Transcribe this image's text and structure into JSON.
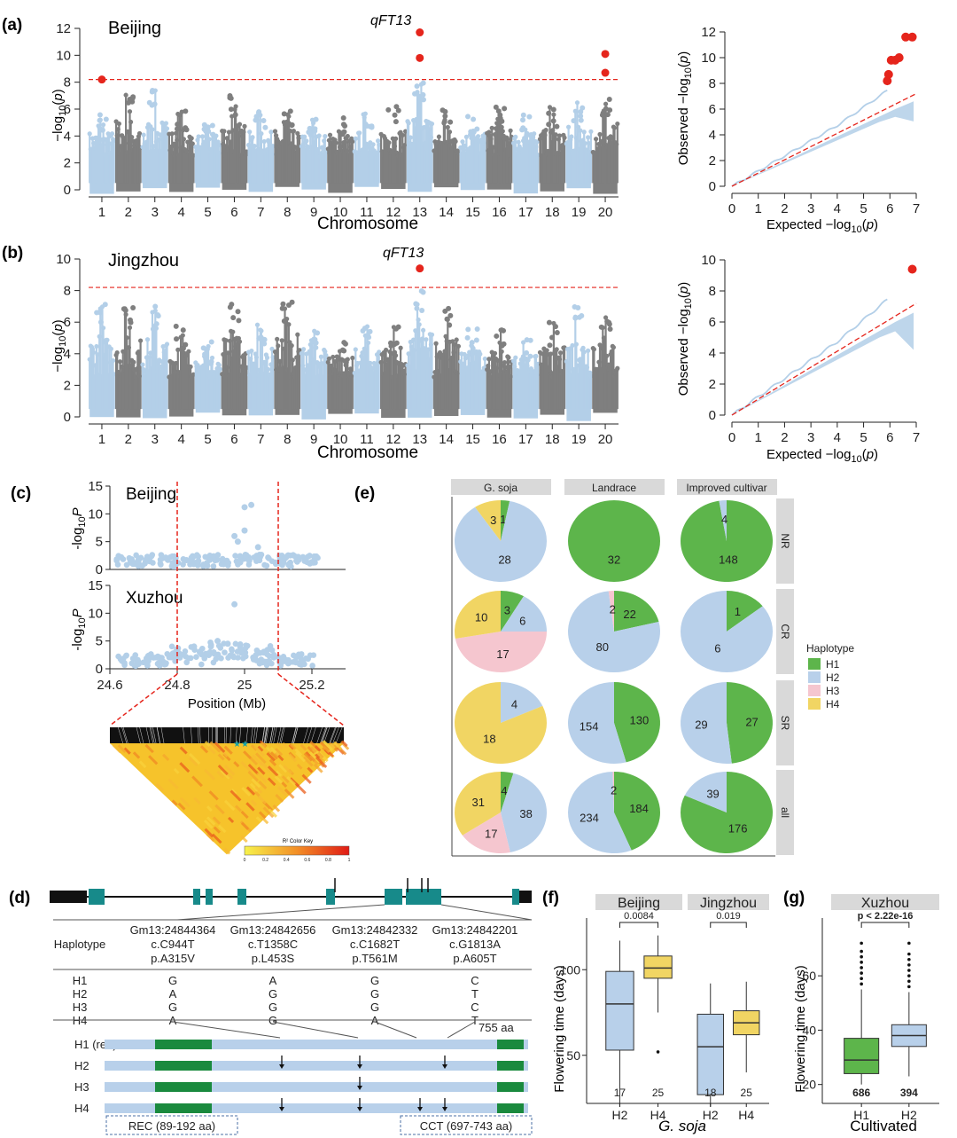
{
  "panel_letters": [
    "(a)",
    "(b)",
    "(c)",
    "(d)",
    "(e)",
    "(f)",
    "(g)"
  ],
  "colors": {
    "light": "#b3cfe8",
    "dark": "#7f7f7f",
    "sig": "#e5251c",
    "threshold": "#e5251c",
    "h1": "#5db54b",
    "h2": "#b8d0ea",
    "h3": "#f5c6cf",
    "h4": "#f1d563",
    "gene": "#178a8a",
    "domain": "#1a8a3e"
  },
  "chart_data": [
    {
      "id": "a_manhattan",
      "type": "scatter",
      "title": "Beijing",
      "annotation": "qFT13",
      "xlabel": "Chromosome",
      "ylabel": "-log10(p)",
      "ylim": [
        0,
        12
      ],
      "yticks": [
        "0",
        "2",
        "4",
        "6",
        "8",
        "10",
        "12"
      ],
      "categories": [
        "1",
        "2",
        "3",
        "4",
        "5",
        "6",
        "7",
        "8",
        "9",
        "10",
        "11",
        "12",
        "13",
        "14",
        "15",
        "16",
        "17",
        "18",
        "19",
        "20"
      ],
      "threshold": 8.2,
      "peak_heights": [
        5.8,
        7.5,
        7.4,
        5.9,
        5.5,
        7.0,
        5.8,
        6.0,
        5.5,
        5.5,
        5.8,
        6.2,
        8.0,
        6.0,
        5.6,
        6.5,
        5.6,
        6.2,
        6.5,
        7.0
      ],
      "significant": [
        {
          "chr": "1",
          "y": 8.2
        },
        {
          "chr": "13",
          "y": 11.7
        },
        {
          "chr": "13",
          "y": 9.8
        },
        {
          "chr": "20",
          "y": 10.1
        },
        {
          "chr": "20",
          "y": 8.7
        }
      ]
    },
    {
      "id": "a_qq",
      "type": "scatter",
      "xlabel": "Expected -log10(p)",
      "ylabel": "Observed -log10(p)",
      "xlim": [
        0,
        7
      ],
      "ylim": [
        0,
        12
      ],
      "xticks": [
        "0",
        "1",
        "2",
        "3",
        "4",
        "5",
        "6",
        "7"
      ],
      "yticks": [
        "0",
        "2",
        "4",
        "6",
        "8",
        "10",
        "12"
      ],
      "significant": [
        {
          "x": 5.9,
          "y": 8.2
        },
        {
          "x": 5.95,
          "y": 8.7
        },
        {
          "x": 6.05,
          "y": 9.8
        },
        {
          "x": 6.2,
          "y": 9.8
        },
        {
          "x": 6.35,
          "y": 10.0
        },
        {
          "x": 6.6,
          "y": 11.6
        },
        {
          "x": 6.85,
          "y": 11.6
        }
      ]
    },
    {
      "id": "b_manhattan",
      "type": "scatter",
      "title": "Jingzhou",
      "annotation": "qFT13",
      "xlabel": "Chromosome",
      "ylabel": "-log10(p)",
      "ylim": [
        0,
        10
      ],
      "yticks": [
        "0",
        "2",
        "4",
        "6",
        "8",
        "10"
      ],
      "categories": [
        "1",
        "2",
        "3",
        "4",
        "5",
        "6",
        "7",
        "8",
        "9",
        "10",
        "11",
        "12",
        "13",
        "14",
        "15",
        "16",
        "17",
        "18",
        "19",
        "20"
      ],
      "threshold": 8.2,
      "peak_heights": [
        7.2,
        7.0,
        7.0,
        5.8,
        4.8,
        7.2,
        6.0,
        7.5,
        5.8,
        5.0,
        5.8,
        6.0,
        8.0,
        7.0,
        5.6,
        5.5,
        5.0,
        6.0,
        7.2,
        7.0
      ],
      "significant": [
        {
          "chr": "13",
          "y": 9.4
        }
      ]
    },
    {
      "id": "b_qq",
      "type": "scatter",
      "xlabel": "Expected -log10(p)",
      "ylabel": "Observed -log10(p)",
      "xlim": [
        0,
        7
      ],
      "ylim": [
        0,
        10
      ],
      "xticks": [
        "0",
        "1",
        "2",
        "3",
        "4",
        "5",
        "6",
        "7"
      ],
      "yticks": [
        "0",
        "2",
        "4",
        "6",
        "8",
        "10"
      ],
      "significant": [
        {
          "x": 6.85,
          "y": 9.4
        }
      ]
    },
    {
      "id": "c_regional",
      "type": "scatter",
      "xlabel": "Position (Mb)",
      "ylabel": "-log10P",
      "xlim": [
        24.6,
        25.3
      ],
      "xticks": [
        "24.6",
        "24.8",
        "25",
        "25.2"
      ],
      "xtick_values": [
        24.6,
        24.8,
        25.0,
        25.2
      ],
      "yticks": [
        "0",
        "5",
        "10",
        "15"
      ],
      "ylim": [
        0,
        15
      ],
      "facets": [
        "Beijing",
        "Xuzhou"
      ],
      "interval": [
        24.8,
        25.1
      ],
      "ld_key_label": "R² Color Key",
      "ld_key_ticks": [
        "0",
        "0.2",
        "0.4",
        "0.6",
        "0.8",
        "1"
      ]
    },
    {
      "id": "e_pies",
      "type": "pie",
      "columns": [
        "G. soja",
        "Landrace",
        "Improved cultivar"
      ],
      "rows": [
        "NR",
        "CR",
        "SR",
        "all"
      ],
      "legend_title": "Haplotype",
      "legend": [
        "H1",
        "H2",
        "H3",
        "H4"
      ],
      "cells": [
        [
          {
            "H1": 1,
            "H2": 28,
            "H3": 0,
            "H4": 3,
            "labels": {
              "H1": "1",
              "H2": "28",
              "H4": "3"
            }
          },
          {
            "H1": 32,
            "H2": 0,
            "H3": 0,
            "H4": 0,
            "labels": {
              "H1": "32"
            }
          },
          {
            "H1": 148,
            "H2": 4,
            "H3": 0,
            "H4": 0,
            "labels": {
              "H1": "148",
              "H2": "4"
            }
          }
        ],
        [
          {
            "H1": 3,
            "H2": 6,
            "H3": 17,
            "H4": 10,
            "labels": {
              "H1": "3",
              "H2": "6",
              "H3": "17",
              "H4": "10"
            }
          },
          {
            "H1": 22,
            "H2": 80,
            "H3": 2,
            "H4": 0,
            "labels": {
              "H1": "22",
              "H2": "80",
              "H3": "2"
            }
          },
          {
            "H1": 1,
            "H2": 6,
            "H3": 0,
            "H4": 0,
            "labels": {
              "H1": "1",
              "H2": "6"
            }
          }
        ],
        [
          {
            "H1": 0,
            "H2": 4,
            "H3": 0,
            "H4": 18,
            "labels": {
              "H2": "4",
              "H4": "18"
            }
          },
          {
            "H1": 130,
            "H2": 154,
            "H3": 0,
            "H4": 0,
            "labels": {
              "H1": "130",
              "H2": "154"
            }
          },
          {
            "H1": 27,
            "H2": 29,
            "H3": 0,
            "H4": 0,
            "labels": {
              "H1": "27",
              "H2": "29"
            }
          }
        ],
        [
          {
            "H1": 4,
            "H2": 38,
            "H3": 17,
            "H4": 31,
            "labels": {
              "H1": "4",
              "H2": "38",
              "H3": "17",
              "H4": "31"
            }
          },
          {
            "H1": 184,
            "H2": 234,
            "H3": 2,
            "H4": 0,
            "labels": {
              "H1": "184",
              "H2": "234",
              "H3": "2"
            }
          },
          {
            "H1": 176,
            "H2": 39,
            "H3": 0,
            "H4": 0,
            "labels": {
              "H1": "176",
              "H2": "39"
            }
          }
        ]
      ]
    },
    {
      "id": "f_box",
      "type": "box",
      "facets": [
        "Beijing",
        "Jingzhou"
      ],
      "ylabel": "Flowering time (days)",
      "xlabel": "G. soja",
      "ylim": [
        25,
        125
      ],
      "yticks": [
        "50",
        "100"
      ],
      "ytick_values": [
        50,
        100
      ],
      "pvalues": [
        "0.0084",
        "0.019"
      ],
      "groups": [
        [
          {
            "name": "H2",
            "n": "17",
            "min": 20,
            "q1": 53,
            "median": 80,
            "q3": 99,
            "max": 117,
            "outliers": []
          },
          {
            "name": "H4",
            "n": "25",
            "min": 75,
            "q1": 95,
            "median": 101,
            "q3": 108,
            "max": 120,
            "outliers": [
              52
            ]
          }
        ],
        [
          {
            "name": "H2",
            "n": "18",
            "min": 20,
            "q1": 27,
            "median": 55,
            "q3": 74,
            "max": 92,
            "outliers": []
          },
          {
            "name": "H4",
            "n": "25",
            "min": 40,
            "q1": 62,
            "median": 69,
            "q3": 76,
            "max": 93,
            "outliers": []
          }
        ]
      ]
    },
    {
      "id": "g_box",
      "type": "box",
      "facets": [
        "Xuzhou"
      ],
      "ylabel": "Flowering time (days)",
      "xlabel": "Cultivated",
      "ylim": [
        15,
        78
      ],
      "yticks": [
        "20",
        "40",
        "60"
      ],
      "ytick_values": [
        20,
        40,
        60
      ],
      "pvalues": [
        "p < 2.22e-16"
      ],
      "groups": [
        [
          {
            "name": "H1",
            "n": "686",
            "min": 20,
            "q1": 24,
            "median": 29,
            "q3": 37,
            "max": 55,
            "outliers": [
              57,
              59,
              61,
              63,
              65,
              67,
              69,
              72
            ]
          },
          {
            "name": "H2",
            "n": "394",
            "min": 23,
            "q1": 34,
            "median": 38,
            "q3": 42,
            "max": 54,
            "outliers": [
              56,
              58,
              60,
              62,
              64,
              66,
              68,
              72
            ]
          }
        ]
      ]
    }
  ],
  "d": {
    "snps": [
      "Gm13:24844364",
      "Gm13:24842656",
      "Gm13:24842332",
      "Gm13:24842201"
    ],
    "cdna": [
      "c.C944T",
      "c.T1358C",
      "c.C1682T",
      "c.G1813A"
    ],
    "protein": [
      "p.A315V",
      "p.L453S",
      "p.T561M",
      "p.A605T"
    ],
    "haplotype_header": "Haplotype",
    "haplotypes": [
      {
        "name": "H1",
        "alleles": [
          "G",
          "A",
          "G",
          "C"
        ]
      },
      {
        "name": "H2",
        "alleles": [
          "A",
          "G",
          "G",
          "T"
        ]
      },
      {
        "name": "H3",
        "alleles": [
          "G",
          "G",
          "G",
          "C"
        ]
      },
      {
        "name": "H4",
        "alleles": [
          "A",
          "G",
          "A",
          "T"
        ]
      }
    ],
    "protein_length": "755 aa",
    "bars": [
      {
        "name": "H1 (ref.)",
        "arrows": []
      },
      {
        "name": "H2",
        "arrows": [
          0.4,
          0.7
        ]
      },
      {
        "name": "H3",
        "arrows": [
          0.4
        ]
      },
      {
        "name": "H4",
        "arrows": [
          0.4,
          0.7
        ]
      }
    ],
    "domains": [
      "REC (89-192 aa)",
      "CCT (697-743 aa)"
    ]
  }
}
